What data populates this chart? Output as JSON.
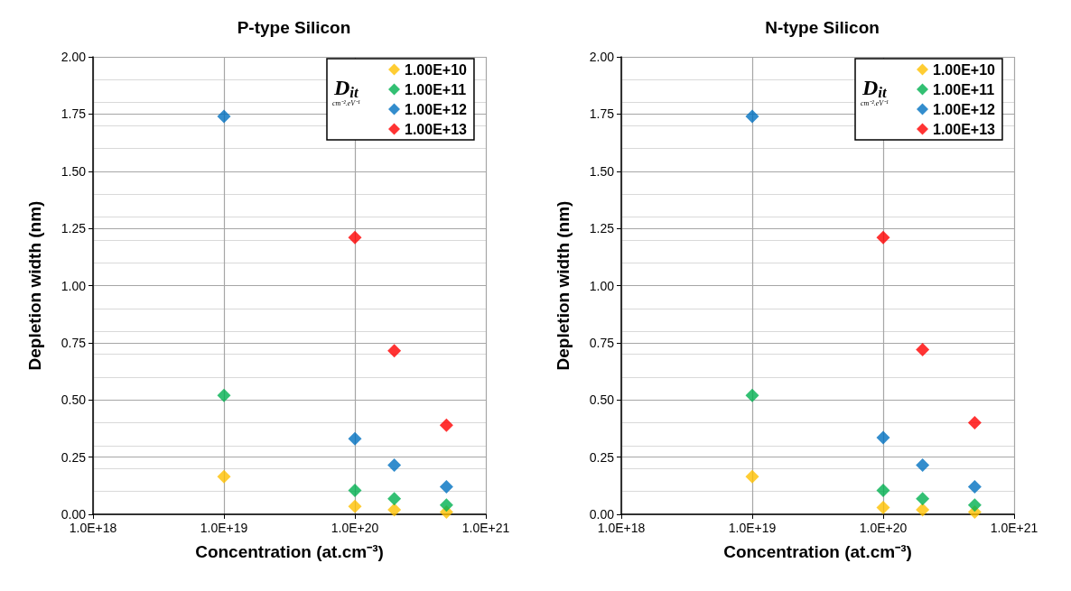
{
  "chart_data": [
    {
      "type": "scatter",
      "title": "P-type Silicon",
      "xlabel": "Concentration (at.cm⁻³)",
      "ylabel": "Depletion width (nm)",
      "legend_title": "D$_{it}$\ncm⁻².eV⁻¹",
      "log": "x",
      "grid": true,
      "legend": "top right",
      "marker": "diamond",
      "xlim": [
        1e+18,
        1e+21
      ],
      "xticks": [
        {
          "value": 1e+18,
          "label": "1.0E+18"
        },
        {
          "value": 1e+19,
          "label": "1.0E+19"
        },
        {
          "value": 1e+20,
          "label": "1.0E+20"
        },
        {
          "value": 1e+21,
          "label": "1.0E+21"
        }
      ],
      "ylim": [
        0,
        2
      ],
      "yticks": [
        {
          "value": 0,
          "label": "0.00"
        },
        {
          "value": 0.25,
          "label": "0.25"
        },
        {
          "value": 0.5,
          "label": "0.50"
        },
        {
          "value": 0.75,
          "label": "0.75"
        },
        {
          "value": 1,
          "label": "1.00"
        },
        {
          "value": 1.25,
          "label": "1.25"
        },
        {
          "value": 1.5,
          "label": "1.50"
        },
        {
          "value": 1.75,
          "label": "1.75"
        },
        {
          "value": 2,
          "label": "2.00"
        }
      ],
      "series": [
        {
          "name": "1.00E+10",
          "color": "#ffc000",
          "x": [
            1e+19,
            1e+20,
            2e+20,
            5e+20
          ],
          "values": [
            0.165,
            0.035,
            0.02,
            0.01
          ]
        },
        {
          "name": "1.00E+11",
          "color": "#00b050",
          "x": [
            1e+19,
            1e+20,
            2e+20,
            5e+20
          ],
          "values": [
            0.52,
            0.105,
            0.068,
            0.04
          ]
        },
        {
          "name": "1.00E+12",
          "color": "#0070c0",
          "x": [
            1e+19,
            1e+20,
            2e+20,
            5e+20
          ],
          "values": [
            1.74,
            0.33,
            0.215,
            0.12
          ]
        },
        {
          "name": "1.00E+13",
          "color": "#ff0000",
          "x": [
            1e+20,
            2e+20,
            5e+20
          ],
          "values": [
            1.21,
            0.715,
            0.39
          ]
        }
      ]
    },
    {
      "type": "scatter",
      "title": "N-type Silicon",
      "xlabel": "Concentration (at.cm⁻³)",
      "ylabel": "Depletion width (nm)",
      "legend_title": "D$_{it}$\ncm⁻².eV⁻¹",
      "log": "x",
      "grid": true,
      "legend": "top right",
      "marker": "diamond",
      "xlim": [
        1e+18,
        1e+21
      ],
      "xticks": [
        {
          "value": 1e+18,
          "label": "1.0E+18"
        },
        {
          "value": 1e+19,
          "label": "1.0E+19"
        },
        {
          "value": 1e+20,
          "label": "1.0E+20"
        },
        {
          "value": 1e+21,
          "label": "1.0E+21"
        }
      ],
      "ylim": [
        0,
        2
      ],
      "yticks": [
        {
          "value": 0,
          "label": "0.00"
        },
        {
          "value": 0.25,
          "label": "0.25"
        },
        {
          "value": 0.5,
          "label": "0.50"
        },
        {
          "value": 0.75,
          "label": "0.75"
        },
        {
          "value": 1,
          "label": "1.00"
        },
        {
          "value": 1.25,
          "label": "1.25"
        },
        {
          "value": 1.5,
          "label": "1.50"
        },
        {
          "value": 1.75,
          "label": "1.75"
        },
        {
          "value": 2,
          "label": "2.00"
        }
      ],
      "series": [
        {
          "name": "1.00E+10",
          "color": "#ffc000",
          "x": [
            1e+19,
            1e+20,
            2e+20,
            5e+20
          ],
          "values": [
            0.165,
            0.03,
            0.02,
            0.01
          ]
        },
        {
          "name": "1.00E+11",
          "color": "#00b050",
          "x": [
            1e+19,
            1e+20,
            2e+20,
            5e+20
          ],
          "values": [
            0.52,
            0.105,
            0.068,
            0.04
          ]
        },
        {
          "name": "1.00E+12",
          "color": "#0070c0",
          "x": [
            1e+19,
            1e+20,
            2e+20,
            5e+20
          ],
          "values": [
            1.74,
            0.335,
            0.215,
            0.12
          ]
        },
        {
          "name": "1.00E+13",
          "color": "#ff0000",
          "x": [
            1e+20,
            2e+20,
            5e+20
          ],
          "values": [
            1.21,
            0.72,
            0.4
          ]
        }
      ]
    }
  ]
}
